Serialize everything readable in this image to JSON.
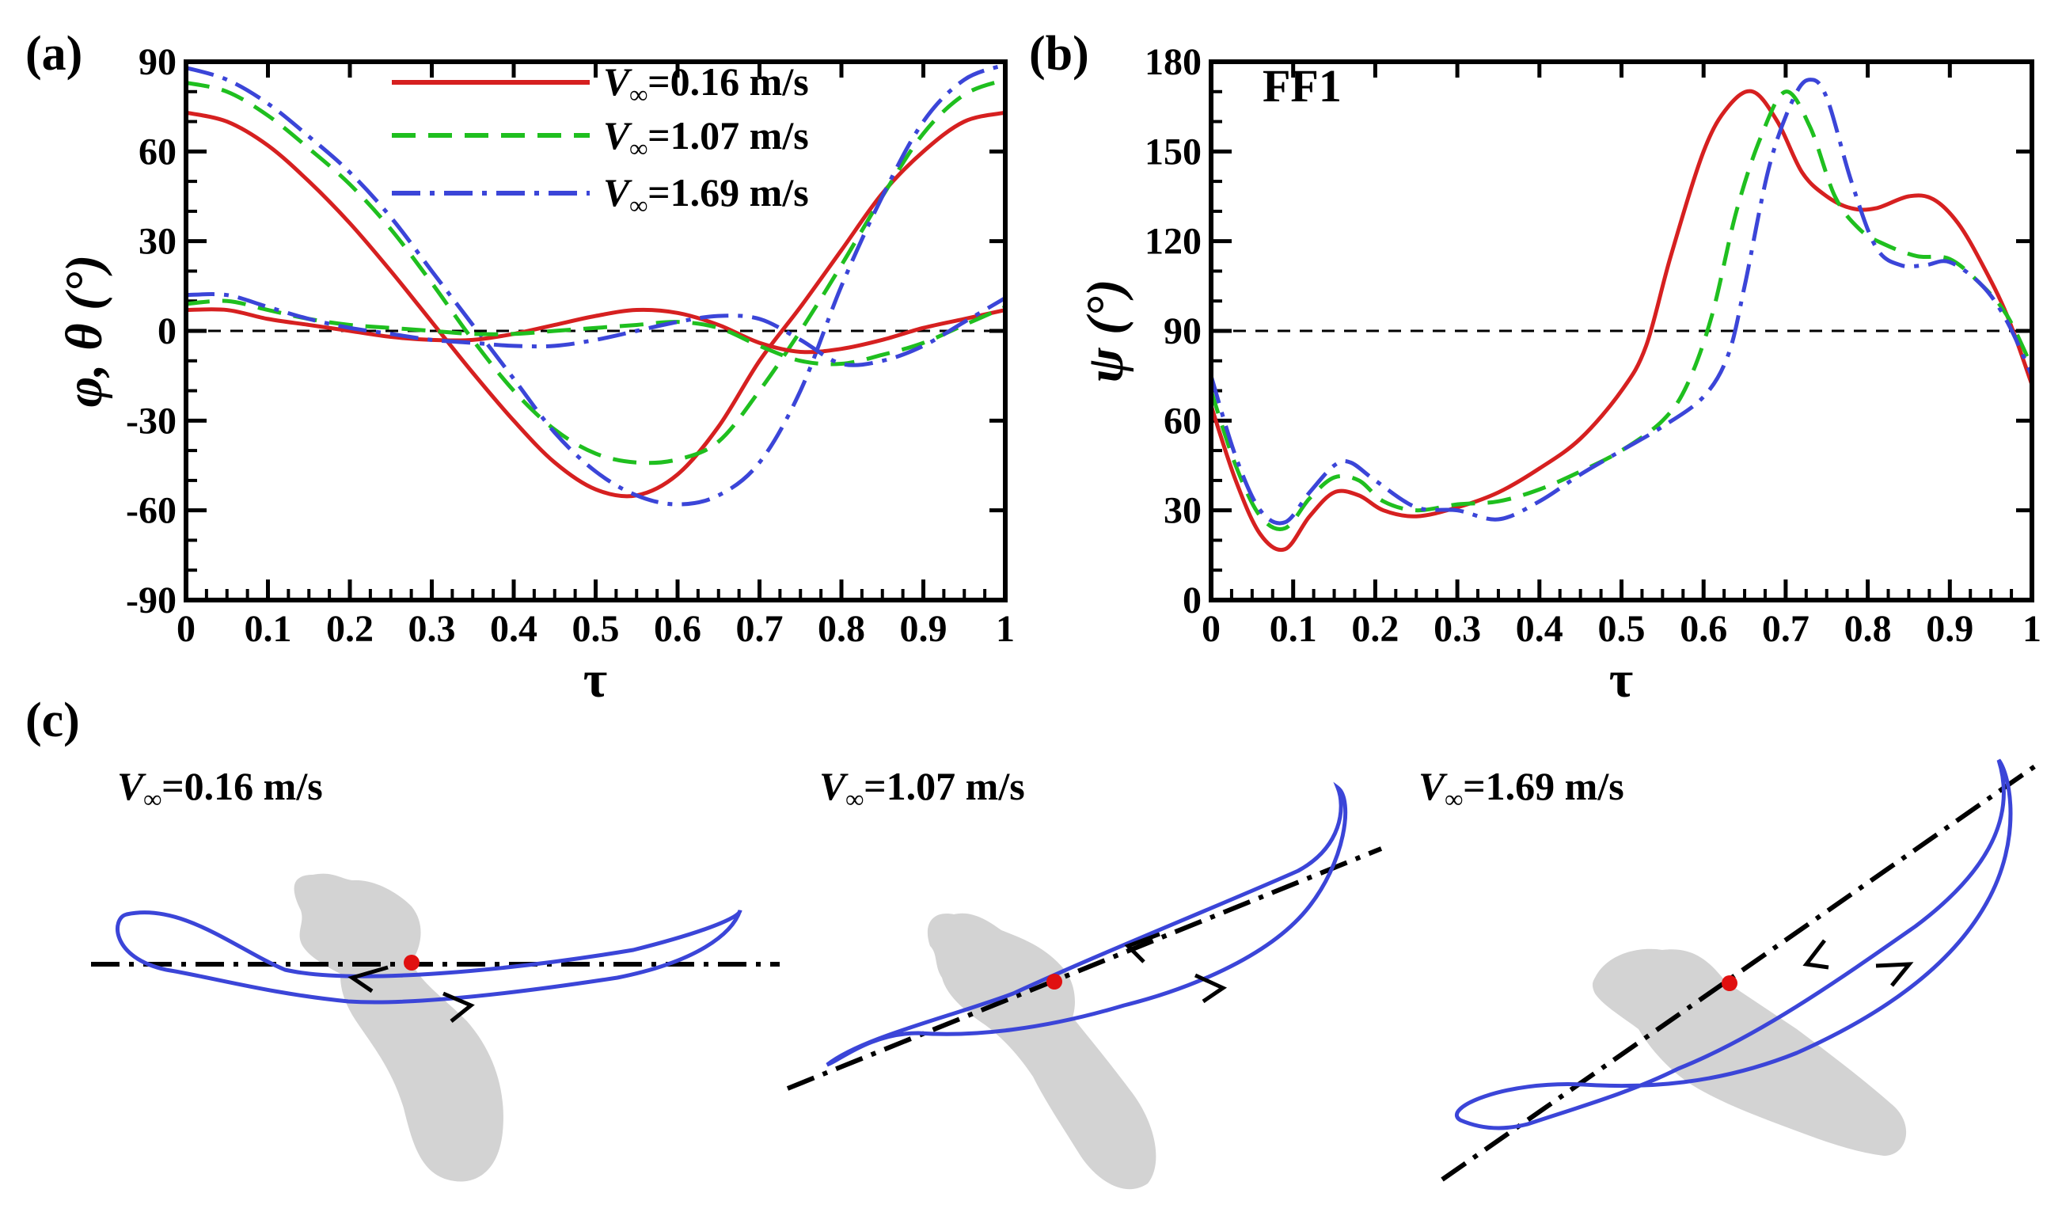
{
  "colors": {
    "v016": "#d62020",
    "v107": "#1fbf1f",
    "v169": "#3b45d8",
    "body": "#d3d3d3",
    "center_point": "#e01010",
    "trajectory": "#3b45d8"
  },
  "series_styles": {
    "v016": "solid",
    "v107": "dashed",
    "v169": "dash-dot"
  },
  "legend": {
    "items": [
      {
        "var": "V",
        "sub": "∞",
        "rest": "=0.16 m/s",
        "series": "v016"
      },
      {
        "var": "V",
        "sub": "∞",
        "rest": "=1.07 m/s",
        "series": "v107"
      },
      {
        "var": "V",
        "sub": "∞",
        "rest": "=1.69 m/s",
        "series": "v169"
      }
    ]
  },
  "chart_data": [
    {
      "id": "a",
      "panel_label": "(a)",
      "type": "line",
      "xlabel": "τ",
      "ylabel": "φ, θ (°)",
      "xlim": [
        0,
        1
      ],
      "ylim": [
        -90,
        90
      ],
      "xticks": [
        0,
        0.1,
        0.2,
        0.3,
        0.4,
        0.5,
        0.6,
        0.7,
        0.8,
        0.9,
        1
      ],
      "xtick_labels": [
        "0",
        "0.1",
        "0.2",
        "0.3",
        "0.4",
        "0.5",
        "0.6",
        "0.7",
        "0.8",
        "0.9",
        "1"
      ],
      "yticks": [
        -90,
        -60,
        -30,
        0,
        30,
        60,
        90
      ],
      "ytick_labels": [
        "-90",
        "-60",
        "-30",
        "0",
        "30",
        "60",
        "90"
      ],
      "reference_line_y": 0,
      "series": [
        {
          "name": "φ, V∞=0.16 m/s",
          "style": "v016",
          "x": [
            0,
            0.05,
            0.1,
            0.15,
            0.2,
            0.25,
            0.3,
            0.35,
            0.4,
            0.45,
            0.5,
            0.55,
            0.6,
            0.65,
            0.7,
            0.75,
            0.8,
            0.85,
            0.9,
            0.95,
            1
          ],
          "y": [
            73,
            70,
            62,
            50,
            36,
            20,
            3,
            -14,
            -30,
            -44,
            -53,
            -55,
            -48,
            -32,
            -10,
            8,
            27,
            46,
            60,
            70,
            73
          ]
        },
        {
          "name": "φ, V∞=1.07 m/s",
          "style": "v107",
          "x": [
            0,
            0.05,
            0.1,
            0.15,
            0.2,
            0.25,
            0.3,
            0.35,
            0.4,
            0.45,
            0.5,
            0.55,
            0.6,
            0.65,
            0.7,
            0.75,
            0.8,
            0.85,
            0.9,
            0.95,
            1
          ],
          "y": [
            83,
            80,
            72,
            61,
            49,
            34,
            16,
            -3,
            -20,
            -33,
            -41,
            -44,
            -43,
            -37,
            -20,
            0,
            22,
            45,
            66,
            79,
            84
          ]
        },
        {
          "name": "φ, V∞=1.69 m/s",
          "style": "v169",
          "x": [
            0,
            0.05,
            0.1,
            0.15,
            0.2,
            0.25,
            0.3,
            0.35,
            0.4,
            0.45,
            0.5,
            0.55,
            0.6,
            0.65,
            0.7,
            0.75,
            0.8,
            0.85,
            0.9,
            0.95,
            1
          ],
          "y": [
            88,
            84,
            76,
            65,
            53,
            38,
            20,
            2,
            -16,
            -34,
            -47,
            -55,
            -58,
            -55,
            -44,
            -20,
            15,
            45,
            70,
            84,
            89
          ]
        },
        {
          "name": "θ, V∞=0.16 m/s",
          "style": "v016",
          "x": [
            0,
            0.05,
            0.1,
            0.15,
            0.2,
            0.25,
            0.3,
            0.35,
            0.4,
            0.45,
            0.5,
            0.55,
            0.6,
            0.65,
            0.7,
            0.75,
            0.8,
            0.85,
            0.9,
            0.95,
            1
          ],
          "y": [
            7,
            7,
            4,
            2,
            0,
            -2,
            -3,
            -3,
            -1,
            2,
            5,
            7,
            6,
            2,
            -4,
            -7,
            -6,
            -3,
            1,
            4,
            7
          ]
        },
        {
          "name": "θ, V∞=1.07 m/s",
          "style": "v107",
          "x": [
            0,
            0.05,
            0.1,
            0.15,
            0.2,
            0.25,
            0.3,
            0.35,
            0.4,
            0.45,
            0.5,
            0.55,
            0.6,
            0.65,
            0.7,
            0.75,
            0.8,
            0.85,
            0.9,
            0.95,
            1
          ],
          "y": [
            9,
            10,
            7,
            4,
            2,
            1,
            0,
            -1,
            -1,
            0,
            1,
            2,
            3,
            1,
            -5,
            -10,
            -11,
            -8,
            -4,
            2,
            8
          ]
        },
        {
          "name": "θ, V∞=1.69 m/s",
          "style": "v169",
          "x": [
            0,
            0.05,
            0.1,
            0.15,
            0.2,
            0.25,
            0.3,
            0.35,
            0.4,
            0.45,
            0.5,
            0.55,
            0.6,
            0.65,
            0.7,
            0.75,
            0.8,
            0.85,
            0.9,
            0.95,
            1
          ],
          "y": [
            12,
            12,
            8,
            4,
            1,
            -1,
            -3,
            -4,
            -5,
            -5,
            -3,
            0,
            3,
            5,
            4,
            -3,
            -11,
            -10,
            -5,
            3,
            11
          ]
        }
      ]
    },
    {
      "id": "b",
      "panel_label": "(b)",
      "annotation": "FF1",
      "type": "line",
      "xlabel": "τ",
      "ylabel": "ψ (°)",
      "xlim": [
        0,
        1
      ],
      "ylim": [
        0,
        180
      ],
      "xticks": [
        0,
        0.1,
        0.2,
        0.3,
        0.4,
        0.5,
        0.6,
        0.7,
        0.8,
        0.9,
        1
      ],
      "xtick_labels": [
        "0",
        "0.1",
        "0.2",
        "0.3",
        "0.4",
        "0.5",
        "0.6",
        "0.7",
        "0.8",
        "0.9",
        "1"
      ],
      "yticks": [
        0,
        30,
        60,
        90,
        120,
        150,
        180
      ],
      "ytick_labels": [
        "0",
        "30",
        "60",
        "90",
        "120",
        "150",
        "180"
      ],
      "reference_line_y": 90,
      "series": [
        {
          "name": "V∞=0.16 m/s",
          "style": "v016",
          "x": [
            0,
            0.03,
            0.06,
            0.09,
            0.12,
            0.15,
            0.18,
            0.21,
            0.25,
            0.3,
            0.35,
            0.4,
            0.45,
            0.5,
            0.53,
            0.56,
            0.6,
            0.63,
            0.66,
            0.69,
            0.72,
            0.75,
            0.78,
            0.81,
            0.85,
            0.88,
            0.91,
            0.94,
            0.97,
            1
          ],
          "y": [
            65,
            40,
            22,
            17,
            28,
            36,
            35,
            30,
            28,
            31,
            36,
            44,
            54,
            70,
            85,
            115,
            150,
            165,
            170,
            160,
            143,
            135,
            131,
            131,
            135,
            134,
            126,
            112,
            95,
            72
          ]
        },
        {
          "name": "V∞=1.07 m/s",
          "style": "v107",
          "x": [
            0,
            0.03,
            0.06,
            0.09,
            0.12,
            0.15,
            0.18,
            0.21,
            0.25,
            0.3,
            0.35,
            0.4,
            0.45,
            0.5,
            0.55,
            0.58,
            0.61,
            0.64,
            0.67,
            0.7,
            0.73,
            0.76,
            0.79,
            0.82,
            0.86,
            0.9,
            0.94,
            0.97,
            1
          ],
          "y": [
            70,
            45,
            28,
            24,
            34,
            41,
            40,
            33,
            30,
            32,
            33,
            37,
            43,
            50,
            60,
            72,
            95,
            130,
            155,
            170,
            158,
            135,
            124,
            119,
            115,
            114,
            105,
            95,
            78
          ]
        },
        {
          "name": "V∞=1.69 m/s",
          "style": "v169",
          "x": [
            0,
            0.03,
            0.06,
            0.09,
            0.12,
            0.15,
            0.17,
            0.2,
            0.25,
            0.3,
            0.35,
            0.4,
            0.45,
            0.5,
            0.55,
            0.6,
            0.63,
            0.65,
            0.68,
            0.71,
            0.73,
            0.75,
            0.78,
            0.81,
            0.84,
            0.87,
            0.9,
            0.94,
            0.97,
            1
          ],
          "y": [
            75,
            48,
            30,
            26,
            36,
            45,
            46,
            40,
            31,
            30,
            27,
            33,
            42,
            50,
            58,
            68,
            82,
            105,
            145,
            168,
            174,
            168,
            140,
            118,
            112,
            112,
            113,
            105,
            93,
            75
          ]
        }
      ]
    }
  ],
  "panel_c": {
    "label": "(c)",
    "subplots": [
      {
        "title_var": "V",
        "title_sub": "∞",
        "title_rest": "=0.16 m/s",
        "axis_angle_deg": 0
      },
      {
        "title_var": "V",
        "title_sub": "∞",
        "title_rest": "=1.07 m/s",
        "axis_angle_deg": -25
      },
      {
        "title_var": "V",
        "title_sub": "∞",
        "title_rest": "=1.69 m/s",
        "axis_angle_deg": -45
      }
    ]
  }
}
